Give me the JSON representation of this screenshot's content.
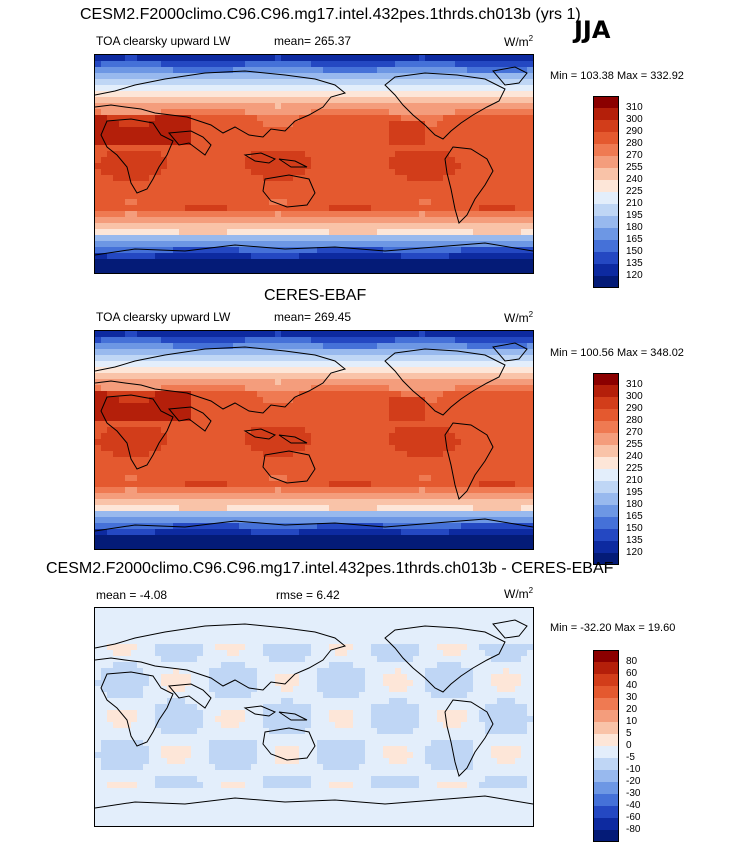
{
  "season": "JJA",
  "panels": [
    {
      "title": "CESM2.F2000climo.C96.C96.mg17.intel.432pes.1thrds.ch013b (yrs 1)",
      "left_label": "TOA clearsky upward LW",
      "mean_text": "mean= 265.37",
      "rmse_text": "",
      "units": "W/m",
      "units_sup": "2",
      "minmax": "Min = 103.38 Max = 332.92",
      "scale": "abs",
      "levels": [
        "310",
        "300",
        "290",
        "280",
        "270",
        "255",
        "240",
        "225",
        "210",
        "195",
        "180",
        "165",
        "150",
        "135",
        "120"
      ],
      "colors": [
        "#8b0000",
        "#b41f0a",
        "#d23d1a",
        "#e4592f",
        "#ef7a52",
        "#f49d7c",
        "#f9c3a8",
        "#fde6d8",
        "#e3eefb",
        "#bfd6f5",
        "#98b9ee",
        "#6d97e4",
        "#4571d8",
        "#2448c2",
        "#0d2aa0",
        "#041b77"
      ]
    },
    {
      "title": "CERES-EBAF",
      "left_label": "TOA clearsky upward LW",
      "mean_text": "mean= 269.45",
      "rmse_text": "",
      "units": "W/m",
      "units_sup": "2",
      "minmax": "Min = 100.56 Max = 348.02",
      "scale": "abs",
      "levels": [
        "310",
        "300",
        "290",
        "280",
        "270",
        "255",
        "240",
        "225",
        "210",
        "195",
        "180",
        "165",
        "150",
        "135",
        "120"
      ],
      "colors": [
        "#8b0000",
        "#b41f0a",
        "#d23d1a",
        "#e4592f",
        "#ef7a52",
        "#f49d7c",
        "#f9c3a8",
        "#fde6d8",
        "#e3eefb",
        "#bfd6f5",
        "#98b9ee",
        "#6d97e4",
        "#4571d8",
        "#2448c2",
        "#0d2aa0",
        "#041b77"
      ]
    },
    {
      "title": "CESM2.F2000climo.C96.C96.mg17.intel.432pes.1thrds.ch013b - CERES-EBAF",
      "left_label": "mean = -4.08",
      "mean_text": "",
      "rmse_text": "rmse =   6.42",
      "units": "W/m",
      "units_sup": "2",
      "minmax": "Min = -32.20 Max =  19.60",
      "scale": "diff",
      "levels": [
        "80",
        "60",
        "40",
        "30",
        "20",
        "10",
        "5",
        "0",
        "-5",
        "-10",
        "-20",
        "-30",
        "-40",
        "-60",
        "-80"
      ],
      "colors": [
        "#8b0000",
        "#b41f0a",
        "#d23d1a",
        "#e4592f",
        "#ef7a52",
        "#f49d7c",
        "#f9c3a8",
        "#fde6d8",
        "#e3eefb",
        "#bfd6f5",
        "#98b9ee",
        "#6d97e4",
        "#4571d8",
        "#2448c2",
        "#0d2aa0",
        "#041b77"
      ]
    }
  ]
}
